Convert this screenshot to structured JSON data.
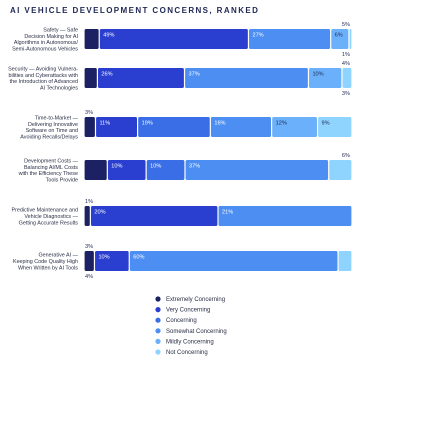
{
  "title": "AI VEHICLE DEVELOPMENT CONCERNS, RANKED",
  "chart_data": {
    "type": "bar",
    "orientation": "horizontal",
    "stacked": true,
    "normalized": true,
    "categories": [
      [
        "Safety — Safe",
        "Decision Making for AI",
        "Algorithms in Autonomous/",
        "Semi-Autonomous Vehicles"
      ],
      [
        "Security — Avoiding Vulnera-",
        "bilities and Cyberattacks with",
        "the Introduction of Advanced",
        "AI Technologies"
      ],
      [
        "Time-to-Market —",
        "Delivering Innovative",
        "Software on Time and",
        "Avoiding Recalls/Delays"
      ],
      [
        "Development Costs —",
        "Balancing AI/ML Costs",
        "with the Efficiency These",
        "Tools Provide"
      ],
      [
        "Predictive Maintenance and",
        "Vehicle Diagnostics —",
        "Getting Accurate Results"
      ],
      [
        "Generative AI —",
        "Keeping Code Quality High",
        "When Written by AI Tools"
      ]
    ],
    "series": [
      {
        "name": "Extremely Concerning",
        "color": "#1c2163",
        "values": [
          5,
          4,
          3,
          6,
          1,
          3
        ]
      },
      {
        "name": "Very Concerning",
        "color": "#2a3fd0",
        "values": [
          49,
          26,
          11,
          10,
          20,
          10
        ]
      },
      {
        "name": "Concerning",
        "color": "#3a6ee6",
        "values": [
          0,
          0,
          19,
          10,
          0,
          0
        ]
      },
      {
        "name": "Somewhat Concerning",
        "color": "#4c8ef2",
        "values": [
          27,
          37,
          16,
          37,
          21,
          60
        ]
      },
      {
        "name": "Mildly Concerning",
        "color": "#6ab0fa",
        "values": [
          6,
          10,
          12,
          0,
          0,
          0
        ]
      },
      {
        "name": "Not Concerning",
        "color": "#8fd3ff",
        "values": [
          1,
          3,
          9,
          6,
          0,
          4
        ]
      }
    ],
    "shown_labels": [
      {
        "row": 0,
        "series": 1,
        "text": "49%"
      },
      {
        "row": 0,
        "series": 3,
        "text": "27%"
      },
      {
        "row": 0,
        "series": 4,
        "text": "6%"
      },
      {
        "row": 1,
        "series": 1,
        "text": "26%"
      },
      {
        "row": 1,
        "series": 3,
        "text": "37%"
      },
      {
        "row": 1,
        "series": 4,
        "text": "10%"
      },
      {
        "row": 2,
        "series": 1,
        "text": "11%"
      },
      {
        "row": 2,
        "series": 2,
        "text": "19%"
      },
      {
        "row": 2,
        "series": 3,
        "text": "16%"
      },
      {
        "row": 2,
        "series": 4,
        "text": "12%"
      },
      {
        "row": 2,
        "series": 5,
        "text": "9%"
      },
      {
        "row": 3,
        "series": 1,
        "text": "10%"
      },
      {
        "row": 3,
        "series": 2,
        "text": "10%"
      },
      {
        "row": 3,
        "series": 3,
        "text": "37%"
      },
      {
        "row": 4,
        "series": 1,
        "text": "20%"
      },
      {
        "row": 4,
        "series": 3,
        "text": "21%"
      },
      {
        "row": 5,
        "series": 1,
        "text": "10%"
      },
      {
        "row": 5,
        "series": 3,
        "text": "60%"
      }
    ],
    "outside_labels": [
      {
        "row": 0,
        "side": "above-right",
        "text": "5%"
      },
      {
        "row": 0,
        "side": "below-right",
        "text": "1%"
      },
      {
        "row": 1,
        "side": "above-right",
        "text": "4%"
      },
      {
        "row": 1,
        "side": "below-right",
        "text": "3%"
      },
      {
        "row": 2,
        "side": "above-left",
        "text": "3%"
      },
      {
        "row": 3,
        "side": "above-right",
        "text": "6%"
      },
      {
        "row": 4,
        "side": "above-left",
        "text": "1%"
      },
      {
        "row": 5,
        "side": "above-left",
        "text": "3%"
      },
      {
        "row": 5,
        "side": "below-left",
        "text": "4%"
      }
    ],
    "legend_position": "bottom-right",
    "xlim": [
      0,
      100
    ]
  }
}
